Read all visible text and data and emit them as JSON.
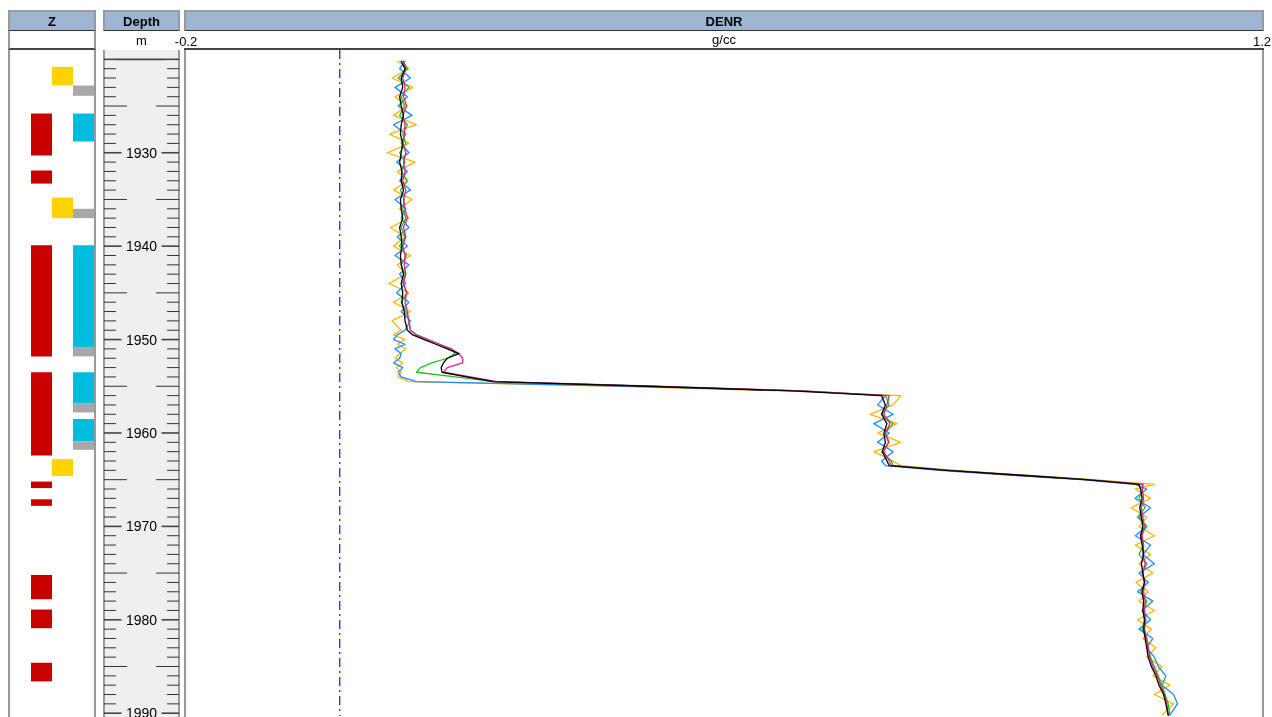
{
  "chart_data": [
    {
      "type": "bar",
      "title": "Z",
      "categories": [
        null,
        null,
        null,
        null
      ],
      "series": [
        {
          "values": [
            null,
            4.5,
            2.0,
            1.1
          ],
          "base": [
            null,
            1925.8,
            1920.8,
            1922.8
          ],
          "colors": [
            null,
            "#c80000",
            "#ffd200",
            "#a8a8a8"
          ]
        },
        {
          "values": [
            null,
            1.4,
            2.2,
            3.0
          ],
          "base": [
            null,
            1931.9,
            1934.8,
            1925.8
          ],
          "colors": [
            null,
            "#c80000",
            "#ffd200",
            "#00bde0"
          ]
        },
        {
          "values": [
            null,
            11.9,
            1.8,
            1.0
          ],
          "base": [
            null,
            1939.9,
            1962.8,
            1936.0
          ],
          "colors": [
            null,
            "#c80000",
            "#ffd200",
            "#a8a8a8"
          ]
        },
        {
          "values": [
            null,
            8.9,
            null,
            10.9
          ],
          "base": [
            null,
            1953.5,
            null,
            1939.9
          ],
          "colors": [
            null,
            "#c80000",
            null,
            "#00bde0"
          ]
        },
        {
          "values": [
            null,
            0.7,
            null,
            1.0
          ],
          "base": [
            null,
            1965.2,
            null,
            1950.8
          ],
          "colors": [
            null,
            "#c80000",
            null,
            "#a8a8a8"
          ]
        },
        {
          "values": [
            null,
            0.7,
            null,
            3.3
          ],
          "base": [
            null,
            1967.1,
            null,
            1953.5
          ],
          "colors": [
            null,
            "#c80000",
            null,
            "#00bde0"
          ]
        },
        {
          "values": [
            null,
            2.6,
            null,
            1.0
          ],
          "base": [
            null,
            1975.2,
            null,
            1956.8
          ],
          "colors": [
            null,
            "#c80000",
            null,
            "#a8a8a8"
          ]
        },
        {
          "values": [
            null,
            2.0,
            null,
            2.4
          ],
          "base": [
            null,
            1978.9,
            null,
            1958.5
          ],
          "colors": [
            null,
            "#c80000",
            null,
            "#00bde0"
          ]
        },
        {
          "values": [
            null,
            2.0,
            null,
            0.9
          ],
          "base": [
            null,
            1984.6,
            null,
            1960.9
          ],
          "colors": [
            null,
            "#c80000",
            null,
            "#a8a8a8"
          ]
        }
      ],
      "ylim": [
        1990.3,
        1919
      ],
      "tick_labels": false
    },
    {
      "type": "line",
      "title": "DENR",
      "xlabel": "g/cc",
      "ylabel": "Depth",
      "annotations": [
        "m"
      ],
      "orientation": "horizontal",
      "x": [
        1920.2,
        1921,
        1922,
        1923,
        1924,
        1925,
        1926,
        1927,
        1928,
        1929,
        1930,
        1931,
        1932,
        1933,
        1934,
        1935,
        1936,
        1937,
        1938,
        1939,
        1940,
        1941,
        1942,
        1943,
        1944,
        1945,
        1946,
        1947,
        1948,
        1949,
        1949.5,
        1950,
        1950.5,
        1951,
        1951.5,
        1952,
        1952.5,
        1953,
        1953.5,
        1954,
        1954.5,
        1955,
        1955.5,
        1956,
        1957,
        1958,
        1959,
        1960,
        1961,
        1962,
        1963,
        1963.5,
        1964,
        1964.5,
        1965,
        1965.5,
        1966,
        1967,
        1968,
        1969,
        1970,
        1971,
        1972,
        1973,
        1974,
        1975,
        1976,
        1977,
        1978,
        1979,
        1980,
        1981,
        1982,
        1983,
        1984,
        1985,
        1986,
        1987,
        1988,
        1989,
        1990.2
      ],
      "series": [
        {
          "color": "#ffb400",
          "values": [
            0.075,
            0.09,
            0.068,
            0.095,
            0.072,
            0.088,
            0.07,
            0.1,
            0.065,
            0.09,
            0.062,
            0.098,
            0.075,
            0.088,
            0.07,
            0.094,
            0.078,
            0.09,
            0.066,
            0.085,
            0.07,
            0.092,
            0.075,
            0.086,
            0.064,
            0.09,
            0.07,
            0.092,
            0.068,
            0.08,
            0.07,
            0.085,
            0.075,
            0.086,
            0.078,
            0.072,
            0.082,
            0.074,
            0.08,
            0.076,
            0.09,
            0.36,
            0.58,
            0.73,
            0.72,
            0.69,
            0.725,
            0.7,
            0.73,
            0.695,
            0.72,
            0.73,
            0.8,
            0.89,
            0.98,
            1.06,
            1.035,
            1.055,
            1.03,
            1.05,
            1.04,
            1.06,
            1.035,
            1.055,
            1.04,
            1.058,
            1.036,
            1.052,
            1.04,
            1.06,
            1.038,
            1.056,
            1.045,
            1.062,
            1.05,
            1.07,
            1.058,
            1.08,
            1.06,
            1.085,
            1.07
          ]
        },
        {
          "color": "#1e8cff",
          "values": [
            0.085,
            0.078,
            0.092,
            0.072,
            0.088,
            0.076,
            0.094,
            0.07,
            0.086,
            0.08,
            0.09,
            0.074,
            0.088,
            0.078,
            0.092,
            0.072,
            0.086,
            0.08,
            0.09,
            0.075,
            0.088,
            0.072,
            0.09,
            0.078,
            0.086,
            0.074,
            0.09,
            0.08,
            0.092,
            0.085,
            0.075,
            0.07,
            0.085,
            0.072,
            0.08,
            0.078,
            0.07,
            0.082,
            0.076,
            0.08,
            0.1,
            0.38,
            0.6,
            0.71,
            0.7,
            0.72,
            0.695,
            0.715,
            0.7,
            0.72,
            0.705,
            0.71,
            0.78,
            0.87,
            0.965,
            1.035,
            1.05,
            1.035,
            1.055,
            1.04,
            1.05,
            1.035,
            1.055,
            1.045,
            1.06,
            1.04,
            1.052,
            1.038,
            1.058,
            1.044,
            1.055,
            1.04,
            1.058,
            1.05,
            1.06,
            1.065,
            1.075,
            1.07,
            1.085,
            1.09,
            1.08
          ]
        },
        {
          "color": "#20c020",
          "values": [
            0.082,
            0.088,
            0.076,
            0.09,
            0.08,
            0.084,
            0.078,
            0.088,
            0.082,
            0.086,
            0.078,
            0.085,
            0.08,
            0.088,
            0.079,
            0.084,
            0.082,
            0.086,
            0.08,
            0.085,
            0.078,
            0.087,
            0.08,
            0.085,
            0.082,
            0.088,
            0.08,
            0.086,
            0.09,
            0.092,
            0.1,
            0.115,
            0.13,
            0.145,
            0.15,
            0.14,
            0.12,
            0.105,
            0.1,
            0.15,
            0.2,
            0.4,
            0.6,
            0.71,
            0.715,
            0.705,
            0.72,
            0.71,
            0.715,
            0.705,
            0.718,
            0.72,
            0.795,
            0.885,
            0.975,
            1.045,
            1.045,
            1.04,
            1.048,
            1.038,
            1.05,
            1.042,
            1.046,
            1.04,
            1.05,
            1.044,
            1.048,
            1.042,
            1.05,
            1.046,
            1.048,
            1.044,
            1.05,
            1.052,
            1.055,
            1.06,
            1.065,
            1.07,
            1.074,
            1.078,
            1.08
          ]
        },
        {
          "color": "#e0209a",
          "values": [
            0.083,
            0.086,
            0.082,
            0.085,
            0.083,
            0.087,
            0.082,
            0.085,
            0.084,
            0.082,
            0.086,
            0.083,
            0.085,
            0.082,
            0.086,
            0.083,
            0.085,
            0.088,
            0.083,
            0.086,
            0.082,
            0.085,
            0.084,
            0.086,
            0.083,
            0.087,
            0.085,
            0.088,
            0.09,
            0.092,
            0.1,
            0.115,
            0.13,
            0.145,
            0.155,
            0.16,
            0.16,
            0.14,
            0.135,
            0.17,
            0.205,
            0.41,
            0.6,
            0.715,
            0.712,
            0.708,
            0.716,
            0.71,
            0.714,
            0.708,
            0.715,
            0.718,
            0.79,
            0.88,
            0.972,
            1.045,
            1.044,
            1.046,
            1.043,
            1.045,
            1.047,
            1.044,
            1.046,
            1.045,
            1.048,
            1.045,
            1.047,
            1.046,
            1.048,
            1.047,
            1.049,
            1.047,
            1.05,
            1.052,
            1.054,
            1.058,
            1.064,
            1.068,
            1.073,
            1.076,
            1.078
          ]
        },
        {
          "color": "#000000",
          "values": [
            0.08,
            0.085,
            0.08,
            0.082,
            0.078,
            0.08,
            0.083,
            0.08,
            0.079,
            0.082,
            0.08,
            0.078,
            0.081,
            0.08,
            0.083,
            0.079,
            0.08,
            0.082,
            0.078,
            0.08,
            0.081,
            0.079,
            0.08,
            0.083,
            0.08,
            0.082,
            0.081,
            0.084,
            0.085,
            0.088,
            0.095,
            0.11,
            0.125,
            0.14,
            0.155,
            0.14,
            0.135,
            0.132,
            0.133,
            0.165,
            0.2,
            0.4,
            0.59,
            0.705,
            0.71,
            0.705,
            0.712,
            0.708,
            0.71,
            0.706,
            0.712,
            0.715,
            0.79,
            0.88,
            0.97,
            1.04,
            1.042,
            1.044,
            1.041,
            1.043,
            1.045,
            1.042,
            1.044,
            1.046,
            1.043,
            1.045,
            1.047,
            1.044,
            1.046,
            1.045,
            1.047,
            1.046,
            1.048,
            1.05,
            1.052,
            1.056,
            1.062,
            1.066,
            1.072,
            1.075,
            1.078
          ]
        }
      ],
      "xlim": [
        -0.2,
        1.2
      ],
      "xticks": [
        -0.2,
        1.2
      ],
      "ylim": [
        1990.3,
        1919
      ],
      "yticks": [
        {
          "value": 1920,
          "label": null
        },
        {
          "value": 1921,
          "label": null
        },
        {
          "value": 1922,
          "label": null
        },
        {
          "value": 1923,
          "label": null
        },
        {
          "value": 1924,
          "label": null
        },
        {
          "value": 1925,
          "label": null
        },
        {
          "value": 1926,
          "label": null
        },
        {
          "value": 1927,
          "label": null
        },
        {
          "value": 1928,
          "label": null
        },
        {
          "value": 1929,
          "label": null
        },
        1930,
        {
          "value": 1931,
          "label": null
        },
        {
          "value": 1932,
          "label": null
        },
        {
          "value": 1933,
          "label": null
        },
        {
          "value": 1934,
          "label": null
        },
        {
          "value": 1935,
          "label": null
        },
        {
          "value": 1936,
          "label": null
        },
        {
          "value": 1937,
          "label": null
        },
        {
          "value": 1938,
          "label": null
        },
        {
          "value": 1939,
          "label": null
        },
        1940,
        {
          "value": 1941,
          "label": null
        },
        {
          "value": 1942,
          "label": null
        },
        {
          "value": 1943,
          "label": null
        },
        {
          "value": 1944,
          "label": null
        },
        {
          "value": 1945,
          "label": null
        },
        {
          "value": 1946,
          "label": null
        },
        {
          "value": 1947,
          "label": null
        },
        {
          "value": 1948,
          "label": null
        },
        {
          "value": 1949,
          "label": null
        },
        1950,
        {
          "value": 1951,
          "label": null
        },
        {
          "value": 1952,
          "label": null
        },
        {
          "value": 1953,
          "label": null
        },
        {
          "value": 1954,
          "label": null
        },
        {
          "value": 1955,
          "label": null
        },
        {
          "value": 1956,
          "label": null
        },
        {
          "value": 1957,
          "label": null
        },
        {
          "value": 1958,
          "label": null
        },
        {
          "value": 1959,
          "label": null
        },
        1960,
        {
          "value": 1961,
          "label": null
        },
        {
          "value": 1962,
          "label": null
        },
        {
          "value": 1963,
          "label": null
        },
        {
          "value": 1964,
          "label": null
        },
        {
          "value": 1965,
          "label": null
        },
        {
          "value": 1966,
          "label": null
        },
        {
          "value": 1967,
          "label": null
        },
        {
          "value": 1968,
          "label": null
        },
        {
          "value": 1969,
          "label": null
        },
        1970,
        {
          "value": 1971,
          "label": null
        },
        {
          "value": 1972,
          "label": null
        },
        {
          "value": 1973,
          "label": null
        },
        {
          "value": 1974,
          "label": null
        },
        {
          "value": 1975,
          "label": null
        },
        {
          "value": 1976,
          "label": null
        },
        {
          "value": 1977,
          "label": null
        },
        {
          "value": 1978,
          "label": null
        },
        {
          "value": 1979,
          "label": null
        },
        1980,
        {
          "value": 1981,
          "label": null
        },
        {
          "value": 1982,
          "label": null
        },
        {
          "value": 1983,
          "label": null
        },
        {
          "value": 1984,
          "label": null
        },
        {
          "value": 1985,
          "label": null
        },
        {
          "value": 1986,
          "label": null
        },
        {
          "value": 1987,
          "label": null
        },
        {
          "value": 1988,
          "label": null
        },
        {
          "value": 1989,
          "label": null
        },
        1990
      ],
      "ref_lines": [
        {
          "axis": "x",
          "value": 0,
          "color": "#2424ff",
          "line_style": "dashed"
        }
      ]
    }
  ]
}
